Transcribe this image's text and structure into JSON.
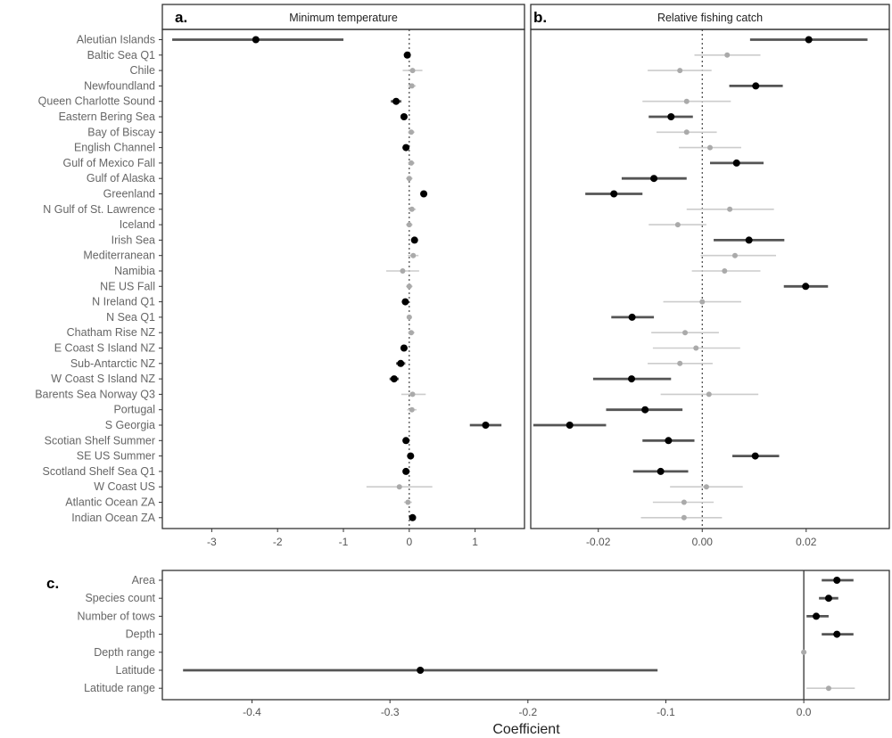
{
  "x_axis_title": "Coefficient",
  "colors": {
    "significant": "#000000",
    "significant_bar": "#555555",
    "nonsignificant": "#aaaaaa",
    "nonsignificant_bar": "#cccccc",
    "frame": "#333333",
    "zero_line": "#333333"
  },
  "chart_data": [
    {
      "type": "scatter",
      "panel": "a.",
      "title": "Minimum temperature",
      "xlim": [
        -3.75,
        1.75
      ],
      "xticks": [
        -3,
        -2,
        -1,
        0,
        1
      ],
      "xtick_labels": [
        "-3",
        "-2",
        "-1",
        "0",
        "1"
      ],
      "zero_line": "dotted",
      "grid": false,
      "categories": [
        "Aleutian Islands",
        "Baltic Sea Q1",
        "Chile",
        "Newfoundland",
        "Queen Charlotte Sound",
        "Eastern Bering Sea",
        "Bay of Biscay",
        "English Channel",
        "Gulf of Mexico Fall",
        "Gulf of Alaska",
        "Greenland",
        "N Gulf of St. Lawrence",
        "Iceland",
        "Irish Sea",
        "Mediterranean",
        "Namibia",
        "NE US Fall",
        "N Ireland Q1",
        "N Sea Q1",
        "Chatham Rise NZ",
        "E Coast S Island NZ",
        "Sub-Antarctic NZ",
        "W Coast S Island NZ",
        "Barents Sea Norway Q3",
        "Portugal",
        "S Georgia",
        "Scotian Shelf Summer",
        "SE US Summer",
        "Scotland Shelf Sea Q1",
        "W Coast US",
        "Atlantic Ocean ZA",
        "Indian Ocean ZA"
      ],
      "estimate": [
        -2.33,
        -0.03,
        0.05,
        0.04,
        -0.2,
        -0.08,
        0.03,
        -0.05,
        0.03,
        0.0,
        0.22,
        0.04,
        0.0,
        0.08,
        0.06,
        -0.1,
        0.0,
        -0.06,
        0.0,
        0.03,
        -0.08,
        -0.13,
        -0.23,
        0.05,
        0.04,
        1.16,
        -0.05,
        0.02,
        -0.05,
        -0.15,
        -0.02,
        0.05
      ],
      "lower": [
        -3.6,
        -0.06,
        -0.1,
        -0.02,
        -0.28,
        -0.13,
        -0.02,
        -0.09,
        -0.02,
        -0.05,
        0.17,
        -0.02,
        -0.05,
        0.03,
        -0.02,
        -0.35,
        -0.05,
        -0.1,
        -0.04,
        -0.02,
        -0.13,
        -0.2,
        -0.3,
        -0.12,
        -0.03,
        0.92,
        -0.09,
        -0.02,
        -0.1,
        -0.65,
        -0.08,
        0.0
      ],
      "upper": [
        -1.0,
        0.0,
        0.2,
        0.1,
        -0.12,
        -0.03,
        0.08,
        -0.01,
        0.08,
        0.05,
        0.27,
        0.1,
        0.05,
        0.13,
        0.14,
        0.15,
        0.05,
        -0.02,
        0.04,
        0.08,
        -0.03,
        -0.06,
        -0.16,
        0.25,
        0.11,
        1.4,
        -0.01,
        0.06,
        0.0,
        0.35,
        0.04,
        0.1
      ],
      "significant": [
        true,
        true,
        false,
        false,
        true,
        true,
        false,
        true,
        false,
        false,
        true,
        false,
        false,
        true,
        false,
        false,
        false,
        true,
        false,
        false,
        true,
        true,
        true,
        false,
        false,
        true,
        true,
        true,
        true,
        false,
        false,
        true
      ]
    },
    {
      "type": "scatter",
      "panel": "b.",
      "title": "Relative fishing catch",
      "xlim": [
        -0.033,
        0.036
      ],
      "xticks": [
        -0.02,
        0.0,
        0.02
      ],
      "xtick_labels": [
        "-0.02",
        "0.00",
        "0.02"
      ],
      "zero_line": "dotted",
      "grid": false,
      "categories": [
        "Aleutian Islands",
        "Baltic Sea Q1",
        "Chile",
        "Newfoundland",
        "Queen Charlotte Sound",
        "Eastern Bering Sea",
        "Bay of Biscay",
        "English Channel",
        "Gulf of Mexico Fall",
        "Gulf of Alaska",
        "Greenland",
        "N Gulf of St. Lawrence",
        "Iceland",
        "Irish Sea",
        "Mediterranean",
        "Namibia",
        "NE US Fall",
        "N Ireland Q1",
        "N Sea Q1",
        "Chatham Rise NZ",
        "E Coast S Island NZ",
        "Sub-Antarctic NZ",
        "W Coast S Island NZ",
        "Barents Sea Norway Q3",
        "Portugal",
        "S Georgia",
        "Scotian Shelf Summer",
        "SE US Summer",
        "Scotland Shelf Sea Q1",
        "W Coast US",
        "Atlantic Ocean ZA",
        "Indian Ocean ZA"
      ],
      "estimate": [
        0.0205,
        0.0048,
        -0.0043,
        0.0103,
        -0.003,
        -0.006,
        -0.003,
        0.0015,
        0.0066,
        -0.0093,
        -0.017,
        0.0053,
        -0.0047,
        0.009,
        0.0063,
        0.0043,
        0.0199,
        0.0,
        -0.0135,
        -0.0033,
        -0.0012,
        -0.0043,
        -0.0136,
        0.0013,
        -0.011,
        -0.0255,
        -0.0065,
        0.0102,
        -0.008,
        0.0008,
        -0.0035,
        -0.0035
      ],
      "lower": [
        0.0092,
        -0.0015,
        -0.0105,
        0.0052,
        -0.0115,
        -0.0103,
        -0.0088,
        -0.0045,
        0.0015,
        -0.0155,
        -0.0225,
        -0.003,
        -0.0103,
        0.0022,
        -0.0003,
        -0.002,
        0.0157,
        -0.0075,
        -0.0175,
        -0.0098,
        -0.0095,
        -0.0105,
        -0.021,
        -0.008,
        -0.0185,
        -0.0325,
        -0.0115,
        0.0058,
        -0.0133,
        -0.0062,
        -0.0095,
        -0.0118
      ],
      "upper": [
        0.0318,
        0.0112,
        0.0018,
        0.0155,
        0.0055,
        -0.0018,
        0.0028,
        0.0075,
        0.0118,
        -0.003,
        -0.0115,
        0.0138,
        0.0008,
        0.0158,
        0.0142,
        0.0112,
        0.0242,
        0.0075,
        -0.0093,
        0.0032,
        0.0073,
        0.002,
        -0.006,
        0.0108,
        -0.0038,
        -0.0185,
        -0.0015,
        0.0148,
        -0.0027,
        0.0078,
        0.0022,
        0.0038
      ],
      "significant": [
        true,
        false,
        false,
        true,
        false,
        true,
        false,
        false,
        true,
        true,
        true,
        false,
        false,
        true,
        false,
        false,
        true,
        false,
        true,
        false,
        false,
        false,
        true,
        false,
        true,
        true,
        true,
        true,
        true,
        false,
        false,
        false
      ]
    },
    {
      "type": "scatter",
      "panel": "c.",
      "xlim": [
        -0.465,
        0.062
      ],
      "xticks": [
        -0.4,
        -0.3,
        -0.2,
        -0.1,
        0.0
      ],
      "xtick_labels": [
        "-0.4",
        "-0.3",
        "-0.2",
        "-0.1",
        "0.0"
      ],
      "zero_line": "solid",
      "grid": false,
      "categories": [
        "Area",
        "Species count",
        "Number of tows",
        "Depth",
        "Depth range",
        "Latitude",
        "Latitude range"
      ],
      "estimate": [
        0.024,
        0.018,
        0.009,
        0.024,
        0.0,
        -0.278,
        0.018
      ],
      "lower": [
        0.013,
        0.011,
        0.002,
        0.013,
        -0.002,
        -0.45,
        0.002
      ],
      "upper": [
        0.036,
        0.025,
        0.018,
        0.036,
        0.002,
        -0.106,
        0.037
      ],
      "significant": [
        true,
        true,
        true,
        true,
        false,
        true,
        false
      ]
    }
  ]
}
